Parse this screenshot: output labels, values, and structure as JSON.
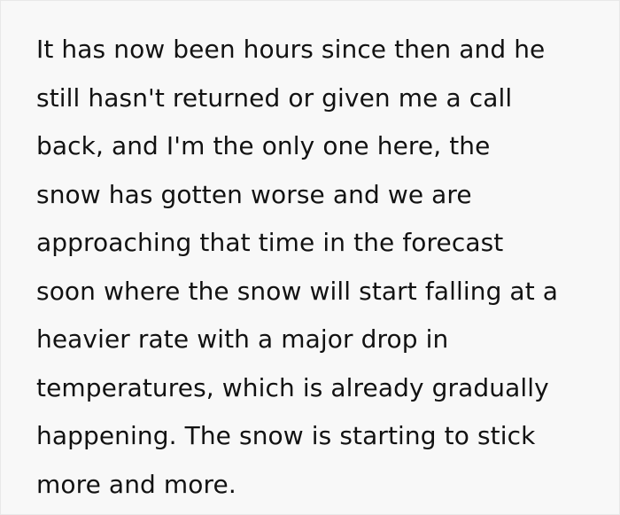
{
  "page": {
    "background_color": "#f8f8f8",
    "border_color": "#e8e8e8",
    "text_color": "#121212"
  },
  "post": {
    "lines": [
      "It has now been hours since then and he",
      "still hasn't returned or given me a call",
      "back, and I'm the only one here, the",
      "snow has gotten worse and we are",
      "approaching that time in the forecast",
      "soon where the snow will start falling at a",
      "heavier rate with a major drop in",
      "temperatures, which is already gradually",
      "happening. The snow is starting to stick",
      "more and more."
    ]
  }
}
